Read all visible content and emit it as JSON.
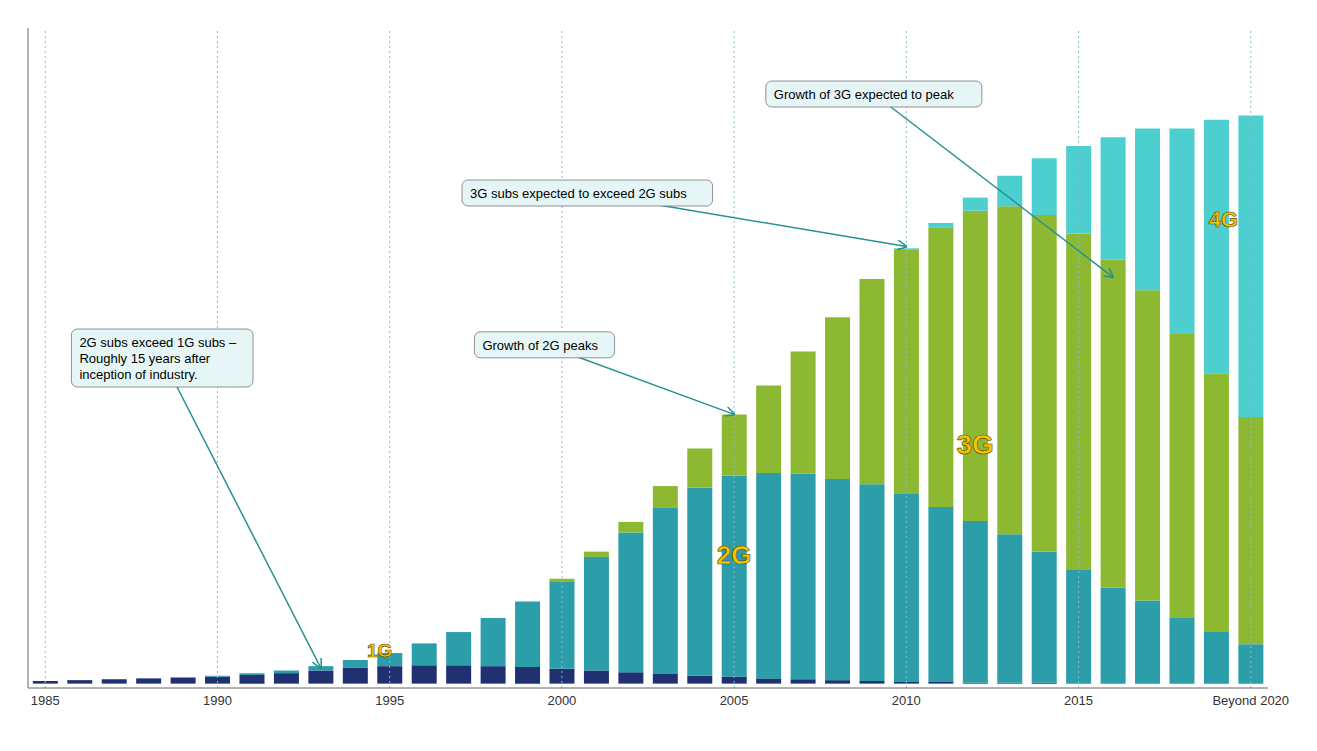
{
  "chart_data": {
    "type": "bar",
    "stacked": true,
    "categories": [
      "1985",
      null,
      null,
      null,
      null,
      "1990",
      null,
      null,
      null,
      null,
      "1995",
      null,
      null,
      null,
      null,
      "2000",
      null,
      null,
      null,
      null,
      "2005",
      null,
      null,
      null,
      null,
      "2010",
      null,
      null,
      null,
      null,
      "2015",
      null,
      null,
      null,
      null,
      "Beyond 2020"
    ],
    "series": [
      {
        "name": "1G",
        "color": "#203070",
        "values": [
          0.3,
          0.4,
          0.5,
          0.6,
          0.7,
          0.8,
          1.0,
          1.2,
          1.5,
          1.8,
          2.0,
          2.1,
          2.1,
          2.0,
          1.9,
          1.7,
          1.5,
          1.3,
          1.1,
          0.9,
          0.8,
          0.6,
          0.5,
          0.4,
          0.3,
          0.2,
          0.2,
          0.1,
          0.1,
          0.1,
          0.0,
          0.0,
          0.0,
          0.0,
          0.0,
          0.0
        ]
      },
      {
        "name": "2G",
        "color": "#2b9eaa",
        "values": [
          0.0,
          0.0,
          0.0,
          0.0,
          0.0,
          0.1,
          0.2,
          0.3,
          0.5,
          0.9,
          1.5,
          2.5,
          3.8,
          5.5,
          7.5,
          10.0,
          13.0,
          16.0,
          19.0,
          21.5,
          23.0,
          23.5,
          23.5,
          23.0,
          22.5,
          21.5,
          20.0,
          18.5,
          17.0,
          15.0,
          13.0,
          11.0,
          9.5,
          7.5,
          6.0,
          4.5
        ]
      },
      {
        "name": "3G",
        "color": "#8db832",
        "values": [
          0.0,
          0.0,
          0.0,
          0.0,
          0.0,
          0.0,
          0.0,
          0.0,
          0.0,
          0.0,
          0.0,
          0.0,
          0.0,
          0.0,
          0.0,
          0.3,
          0.6,
          1.2,
          2.5,
          4.5,
          7.0,
          10.0,
          14.0,
          18.5,
          23.5,
          28.0,
          32.0,
          35.5,
          37.5,
          38.5,
          38.5,
          37.5,
          35.5,
          32.5,
          29.5,
          26.0
        ]
      },
      {
        "name": "4G",
        "color": "#4ecfcf",
        "values": [
          0.0,
          0.0,
          0.0,
          0.0,
          0.0,
          0.0,
          0.0,
          0.0,
          0.0,
          0.0,
          0.0,
          0.0,
          0.0,
          0.0,
          0.0,
          0.0,
          0.0,
          0.0,
          0.0,
          0.0,
          0.0,
          0.0,
          0.0,
          0.0,
          0.0,
          0.1,
          0.5,
          1.5,
          3.5,
          6.5,
          10.0,
          14.0,
          18.5,
          23.5,
          29.0,
          34.5
        ]
      }
    ],
    "ylim": [
      -0.5,
      75
    ],
    "tick_labels": "x",
    "grid": true,
    "annotations": [
      "2G subs exceed 1G subs –\nRoughly 15 years after\ninception of industry.",
      "Growth of 2G peaks",
      "3G subs expected to exceed 2G subs",
      "Growth of 3G expected to peak"
    ]
  }
}
